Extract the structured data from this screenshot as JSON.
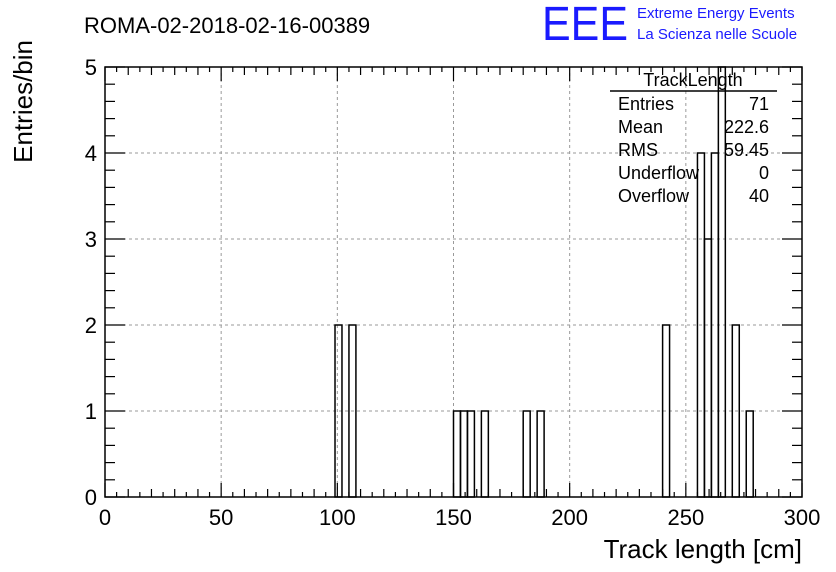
{
  "chart_data": {
    "type": "bar",
    "title": "ROMA-02-2018-02-16-00389",
    "xlabel": "Track length [cm]",
    "ylabel": "Entries/bin",
    "xlim": [
      0,
      300
    ],
    "ylim": [
      0,
      5
    ],
    "x_ticks": [
      0,
      50,
      100,
      150,
      200,
      250,
      300
    ],
    "y_ticks": [
      0,
      1,
      2,
      3,
      4,
      5
    ],
    "grid": true,
    "bin_width": 3,
    "bins": [
      {
        "x0": 99,
        "x1": 102,
        "value": 2
      },
      {
        "x0": 105,
        "x1": 108,
        "value": 2
      },
      {
        "x0": 150,
        "x1": 153,
        "value": 1
      },
      {
        "x0": 153,
        "x1": 156,
        "value": 1
      },
      {
        "x0": 156,
        "x1": 159,
        "value": 1
      },
      {
        "x0": 162,
        "x1": 165,
        "value": 1
      },
      {
        "x0": 180,
        "x1": 183,
        "value": 1
      },
      {
        "x0": 186,
        "x1": 189,
        "value": 1
      },
      {
        "x0": 240,
        "x1": 243,
        "value": 2
      },
      {
        "x0": 255,
        "x1": 258,
        "value": 4
      },
      {
        "x0": 258,
        "x1": 261,
        "value": 3
      },
      {
        "x0": 261,
        "x1": 264,
        "value": 4
      },
      {
        "x0": 264,
        "x1": 267,
        "value": 5
      },
      {
        "x0": 270,
        "x1": 273,
        "value": 2
      },
      {
        "x0": 276,
        "x1": 279,
        "value": 1
      }
    ],
    "stats_box": {
      "title": "TrackLength",
      "rows": [
        {
          "label": "Entries",
          "value": "71"
        },
        {
          "label": "Mean",
          "value": "222.6"
        },
        {
          "label": "RMS",
          "value": "59.45"
        },
        {
          "label": "Underflow",
          "value": "0"
        },
        {
          "label": "Overflow",
          "value": "40"
        }
      ]
    }
  },
  "logo": {
    "mark": "EEE",
    "line1": "Extreme Energy Events",
    "line2": "La Scienza nelle Scuole",
    "color": "#1a1aff"
  },
  "colors": {
    "line": "#000000",
    "grid": "#9a9a9a",
    "background": "#ffffff"
  }
}
